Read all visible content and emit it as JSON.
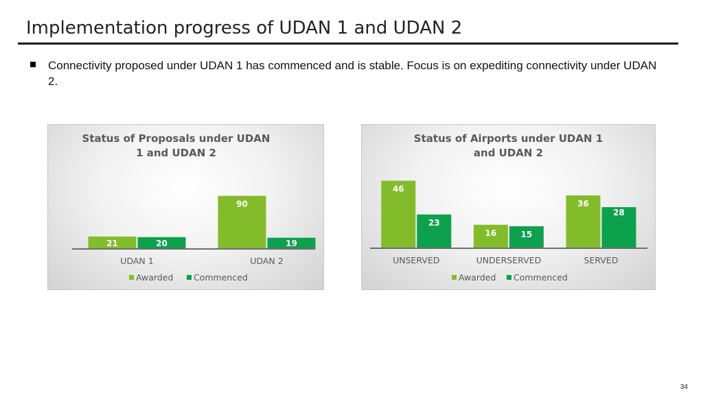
{
  "page": {
    "title": "Implementation progress of UDAN 1 and UDAN 2",
    "bullet": "Connectivity proposed under UDAN 1 has commenced and is stable. Focus is on expediting connectivity under UDAN 2.",
    "page_number": "34"
  },
  "colors": {
    "awarded": "#82bc2b",
    "commenced": "#0ea14d",
    "axis": "#6e6e6e",
    "label": "#595959"
  },
  "chart_data": [
    {
      "type": "bar",
      "title_lines": [
        "Status of Proposals under UDAN",
        "1 and UDAN 2"
      ],
      "categories": [
        "UDAN 1",
        "UDAN 2"
      ],
      "series": [
        {
          "name": "Awarded",
          "values": [
            21,
            90
          ]
        },
        {
          "name": "Commenced",
          "values": [
            20,
            19
          ]
        }
      ],
      "legend_position": "bottom",
      "grid": false,
      "ylim": [
        0,
        100
      ]
    },
    {
      "type": "bar",
      "title_lines": [
        "Status of Airports under UDAN 1",
        "and UDAN 2"
      ],
      "categories": [
        "UNSERVED",
        "UNDERSERVED",
        "SERVED"
      ],
      "series": [
        {
          "name": "Awarded",
          "values": [
            46,
            16,
            36
          ]
        },
        {
          "name": "Commenced",
          "values": [
            23,
            15,
            28
          ]
        }
      ],
      "legend_position": "bottom",
      "grid": false,
      "ylim": [
        0,
        50
      ]
    }
  ]
}
